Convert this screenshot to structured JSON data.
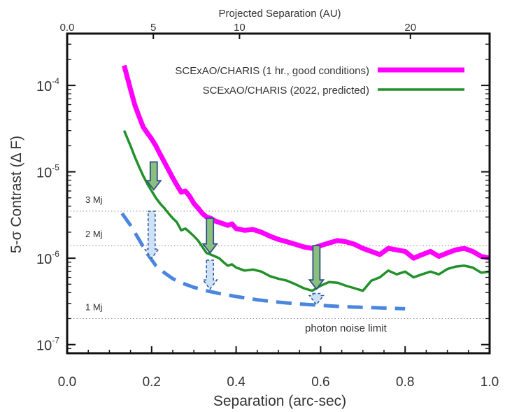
{
  "chart_data": {
    "type": "line",
    "ylabel": "5-σ Contrast (Δ F)",
    "xlabel": "Separation (arc-sec)",
    "top_xlabel": "Projected Separation (AU)",
    "xlim": [
      0.0,
      1.0
    ],
    "ylim_log10": [
      -7.1,
      -3.4
    ],
    "y_scale": "log",
    "x_ticks": [
      {
        "value": 0.0,
        "label": "0.0"
      },
      {
        "value": 0.2,
        "label": "0.2"
      },
      {
        "value": 0.4,
        "label": "0.4"
      },
      {
        "value": 0.6,
        "label": "0.6"
      },
      {
        "value": 0.8,
        "label": "0.8"
      },
      {
        "value": 1.0,
        "label": "1.0"
      }
    ],
    "y_ticks": [
      {
        "exp": -7,
        "label_base": "10",
        "label_exp": "-7"
      },
      {
        "exp": -6,
        "label_base": "10",
        "label_exp": "-6"
      },
      {
        "exp": -5,
        "label_base": "10",
        "label_exp": "-5"
      },
      {
        "exp": -4,
        "label_base": "10",
        "label_exp": "-4"
      }
    ],
    "top_ticks": [
      {
        "value": 0.0,
        "label": "0.0"
      },
      {
        "value": 0.204,
        "label": "5"
      },
      {
        "value": 0.408,
        "label": "10"
      },
      {
        "value": 0.8125,
        "label": "20"
      }
    ],
    "series": [
      {
        "name": "SCExAO/CHARIS (1 hr., good conditions)",
        "color": "#ff00ff",
        "style": "solid",
        "x": [
          0.135,
          0.15,
          0.16,
          0.17,
          0.18,
          0.19,
          0.2,
          0.21,
          0.22,
          0.23,
          0.24,
          0.25,
          0.26,
          0.27,
          0.28,
          0.29,
          0.3,
          0.31,
          0.32,
          0.33,
          0.34,
          0.35,
          0.36,
          0.37,
          0.38,
          0.39,
          0.4,
          0.42,
          0.44,
          0.46,
          0.48,
          0.5,
          0.52,
          0.54,
          0.56,
          0.58,
          0.6,
          0.62,
          0.64,
          0.66,
          0.68,
          0.7,
          0.72,
          0.74,
          0.76,
          0.78,
          0.8,
          0.82,
          0.84,
          0.86,
          0.88,
          0.9,
          0.92,
          0.94,
          0.96,
          0.98,
          1.0
        ],
        "y": [
          0.00017,
          9e-05,
          6e-05,
          4.4e-05,
          3.3e-05,
          2.8e-05,
          2.4e-05,
          2e-05,
          1.6e-05,
          1.3e-05,
          1.05e-05,
          8.5e-06,
          7e-06,
          5.8e-06,
          6e-06,
          5.2e-06,
          4.3e-06,
          3.8e-06,
          3.3e-06,
          3e-06,
          2.9e-06,
          2.7e-06,
          2.6e-06,
          2.5e-06,
          2.4e-06,
          2.5e-06,
          2.2e-06,
          2.1e-06,
          2.15e-06,
          2e-06,
          1.8e-06,
          1.65e-06,
          1.55e-06,
          1.45e-06,
          1.35e-06,
          1.3e-06,
          1.4e-06,
          1.5e-06,
          1.6e-06,
          1.55e-06,
          1.45e-06,
          1.3e-06,
          1.2e-06,
          1.1e-06,
          1.3e-06,
          1.25e-06,
          1.2e-06,
          1e-06,
          1.1e-06,
          1.2e-06,
          1.05e-06,
          1.15e-06,
          1.25e-06,
          1.3e-06,
          1.2e-06,
          1.05e-06,
          1e-06
        ]
      },
      {
        "name": "SCExAO/CHARIS (2022, predicted)",
        "color": "#22912a",
        "style": "solid",
        "x": [
          0.135,
          0.15,
          0.16,
          0.17,
          0.18,
          0.19,
          0.2,
          0.21,
          0.22,
          0.23,
          0.24,
          0.25,
          0.26,
          0.27,
          0.28,
          0.29,
          0.3,
          0.31,
          0.32,
          0.33,
          0.34,
          0.35,
          0.36,
          0.37,
          0.38,
          0.39,
          0.4,
          0.42,
          0.44,
          0.46,
          0.48,
          0.5,
          0.52,
          0.54,
          0.56,
          0.58,
          0.6,
          0.62,
          0.64,
          0.66,
          0.68,
          0.7,
          0.72,
          0.74,
          0.76,
          0.78,
          0.8,
          0.82,
          0.84,
          0.86,
          0.88,
          0.9,
          0.92,
          0.94,
          0.96,
          0.98,
          1.0
        ],
        "y": [
          3e-05,
          2e-05,
          1.5e-05,
          1.15e-05,
          9e-06,
          7.2e-06,
          6e-06,
          5e-06,
          4.3e-06,
          3.8e-06,
          3.3e-06,
          2.9e-06,
          2.6e-06,
          2.1e-06,
          2.2e-06,
          2e-06,
          1.8e-06,
          1.6e-06,
          1.35e-06,
          1.15e-06,
          1.1e-06,
          1.05e-06,
          1e-06,
          9e-07,
          8.2e-07,
          8.5e-07,
          7.8e-07,
          7.2e-07,
          7.4e-07,
          7e-07,
          6.2e-07,
          5.8e-07,
          5.5e-07,
          5e-07,
          4.5e-07,
          4.2e-07,
          4.8e-07,
          5.3e-07,
          5.2e-07,
          4.8e-07,
          4.5e-07,
          4.2e-07,
          5.5e-07,
          6e-07,
          7.2e-07,
          6.5e-07,
          7e-07,
          6e-07,
          6.5e-07,
          7e-07,
          6.5e-07,
          7.5e-07,
          8e-07,
          8.2e-07,
          7.8e-07,
          6.8e-07,
          7e-07
        ]
      },
      {
        "name": "photon noise limit",
        "color": "#4a86e0",
        "style": "dashed",
        "x": [
          0.13,
          0.15,
          0.17,
          0.19,
          0.21,
          0.23,
          0.25,
          0.27,
          0.3,
          0.33,
          0.36,
          0.4,
          0.45,
          0.5,
          0.55,
          0.6,
          0.65,
          0.7,
          0.75,
          0.8
        ],
        "y": [
          3.3e-06,
          2.4e-06,
          1.65e-06,
          1.12e-06,
          8.2e-07,
          6.8e-07,
          5.8e-07,
          5.2e-07,
          4.6e-07,
          4.2e-07,
          3.9e-07,
          3.6e-07,
          3.3e-07,
          3.1e-07,
          2.95e-07,
          2.85e-07,
          2.75e-07,
          2.7e-07,
          2.65e-07,
          2.6e-07
        ]
      }
    ],
    "mass_lines": [
      {
        "label": "3 Mj",
        "y": 3.5e-06
      },
      {
        "label": "2 Mj",
        "y": 1.4e-06
      },
      {
        "label": "1 Mj",
        "y": 2e-07
      }
    ],
    "arrows": [
      {
        "kind": "improvement",
        "x": 0.205,
        "from": 1.3e-05,
        "to": 6.2e-06
      },
      {
        "kind": "improvement",
        "x": 0.338,
        "from": 2.9e-06,
        "to": 1.15e-06
      },
      {
        "kind": "improvement",
        "x": 0.59,
        "from": 1.4e-06,
        "to": 4.4e-07
      },
      {
        "kind": "photon",
        "x": 0.2,
        "from": 3.5e-06,
        "to": 1e-06
      },
      {
        "kind": "photon",
        "x": 0.338,
        "from": 9.5e-07,
        "to": 4.4e-07
      },
      {
        "kind": "photon",
        "x": 0.59,
        "from": 3.9e-07,
        "to": 2.9e-07
      }
    ],
    "annotations": {
      "photon_label": "photon noise limit"
    },
    "legend": {
      "position": "top-right"
    },
    "grid": false
  }
}
